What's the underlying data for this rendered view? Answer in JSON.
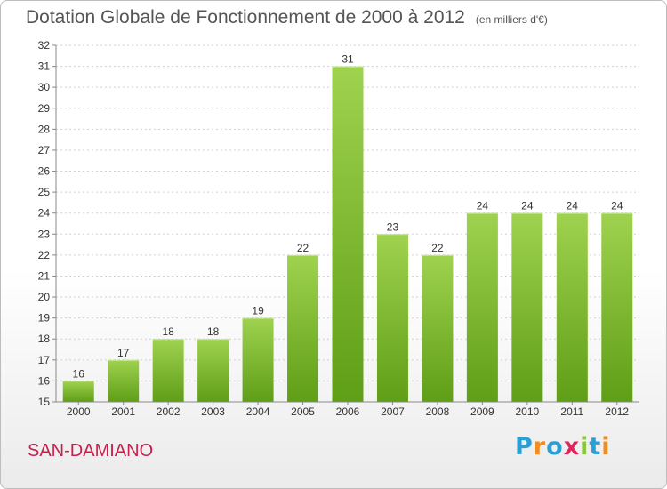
{
  "header": {
    "title": "Dotation Globale de Fonctionnement de 2000 à 2012",
    "subtitle": "(en milliers d'€)"
  },
  "footer": {
    "commune": "SAN-DAMIANO",
    "logo": {
      "letters": [
        "P",
        "r",
        "o",
        "x",
        "i",
        "t",
        "i"
      ],
      "colors": [
        "#2a9fd6",
        "#f28c1e",
        "#2a9fd6",
        "#e0245e",
        "#8cc63f",
        "#2a9fd6",
        "#f28c1e"
      ]
    }
  },
  "chart_data": {
    "type": "bar",
    "categories": [
      "2000",
      "2001",
      "2002",
      "2003",
      "2004",
      "2005",
      "2006",
      "2007",
      "2008",
      "2009",
      "2010",
      "2011",
      "2012"
    ],
    "values": [
      16,
      17,
      18,
      18,
      19,
      22,
      31,
      23,
      22,
      24,
      24,
      24,
      24
    ],
    "data_labels": [
      "16",
      "17",
      "18",
      "18",
      "19",
      "22",
      "31",
      "23",
      "22",
      "24",
      "24",
      "24",
      "24"
    ],
    "ylim": [
      15,
      32
    ],
    "yticks": [
      "15",
      "16",
      "17",
      "18",
      "19",
      "20",
      "21",
      "22",
      "23",
      "24",
      "25",
      "26",
      "27",
      "28",
      "29",
      "30",
      "31",
      "32"
    ],
    "grid": true,
    "colors": {
      "bar_light": "#9fd24f",
      "bar_dark": "#5f9e17",
      "grid": "#d0d0d0",
      "axis": "#888888"
    }
  }
}
